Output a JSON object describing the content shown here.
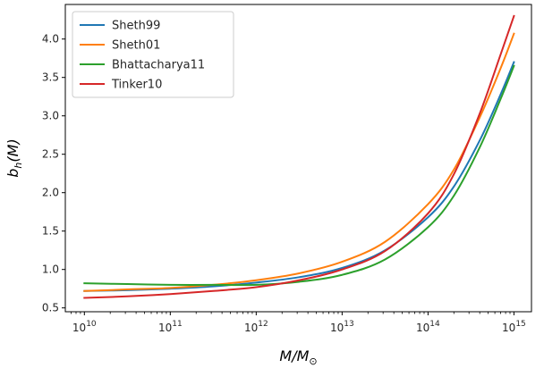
{
  "chart_data": {
    "type": "line",
    "title": "",
    "xlabel": "M/M_⊙",
    "ylabel": "b_h(M)",
    "xscale": "log",
    "xlim": [
      6000000000.0,
      1600000000000000.0
    ],
    "ylim": [
      0.45,
      4.45
    ],
    "xticks": [
      10000000000.0,
      100000000000.0,
      1000000000000.0,
      10000000000000.0,
      100000000000000.0,
      1000000000000000.0
    ],
    "xtick_labels": [
      {
        "base": "10",
        "exp": "10"
      },
      {
        "base": "10",
        "exp": "11"
      },
      {
        "base": "10",
        "exp": "12"
      },
      {
        "base": "10",
        "exp": "13"
      },
      {
        "base": "10",
        "exp": "14"
      },
      {
        "base": "10",
        "exp": "15"
      }
    ],
    "yticks": [
      0.5,
      1.0,
      1.5,
      2.0,
      2.5,
      3.0,
      3.5,
      4.0
    ],
    "ytick_labels": [
      "0.5",
      "1.0",
      "1.5",
      "2.0",
      "2.5",
      "3.0",
      "3.5",
      "4.0"
    ],
    "grid": false,
    "legend_position": "top-left",
    "x": [
      10000000000.0,
      31600000000.0,
      100000000000.0,
      316000000000.0,
      1000000000000.0,
      3160000000000.0,
      10000000000000.0,
      31600000000000.0,
      100000000000000.0,
      200000000000000.0,
      400000000000000.0,
      700000000000000.0,
      1000000000000000.0
    ],
    "series": [
      {
        "name": "Sheth99",
        "color": "#1f77b4",
        "values": [
          0.72,
          0.73,
          0.75,
          0.78,
          0.83,
          0.9,
          1.02,
          1.25,
          1.68,
          2.08,
          2.68,
          3.28,
          3.7
        ]
      },
      {
        "name": "Sheth01",
        "color": "#ff7f0e",
        "values": [
          0.72,
          0.74,
          0.76,
          0.8,
          0.86,
          0.95,
          1.1,
          1.36,
          1.85,
          2.3,
          2.98,
          3.62,
          4.07
        ]
      },
      {
        "name": "Bhattacharya11",
        "color": "#2ca02c",
        "values": [
          0.82,
          0.81,
          0.8,
          0.8,
          0.8,
          0.84,
          0.93,
          1.13,
          1.55,
          1.96,
          2.59,
          3.22,
          3.65
        ]
      },
      {
        "name": "Tinker10",
        "color": "#d62728",
        "values": [
          0.63,
          0.65,
          0.68,
          0.72,
          0.77,
          0.86,
          1.0,
          1.24,
          1.73,
          2.24,
          3.03,
          3.8,
          4.3
        ]
      }
    ]
  }
}
